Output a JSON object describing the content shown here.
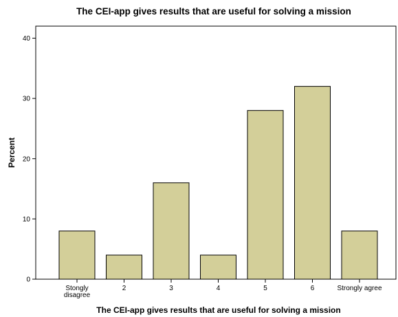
{
  "chart_data": {
    "type": "bar",
    "title": "The CEI-app gives results that are useful for solving a mission",
    "xlabel": "The CEI-app gives results that are useful for solving a mission",
    "ylabel": "Percent",
    "categories": [
      "Stongly disagree",
      "2",
      "3",
      "4",
      "5",
      "6",
      "Strongly agree"
    ],
    "values": [
      8,
      4,
      16,
      4,
      28,
      32,
      8
    ],
    "ylim": [
      0,
      42
    ],
    "yticks": [
      0,
      10,
      20,
      30,
      40
    ],
    "grid": false,
    "colors": {
      "bar_fill": "#d3cf99",
      "bar_stroke": "#000000",
      "plot_border": "#000000"
    }
  }
}
